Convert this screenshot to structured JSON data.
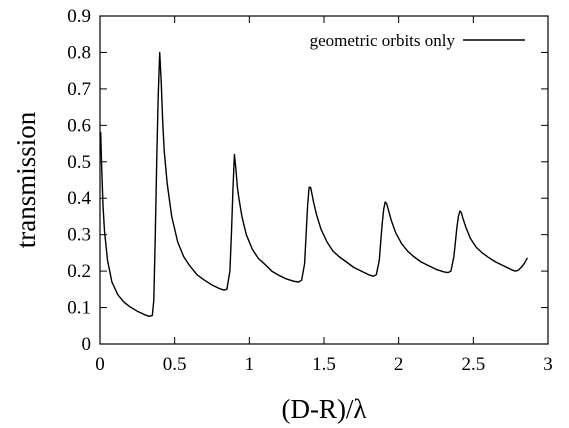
{
  "chart_data": {
    "type": "line",
    "title": "",
    "xlabel": "(D-R)/λ",
    "ylabel": "transmission",
    "xlim": [
      0,
      3
    ],
    "ylim": [
      0,
      0.9
    ],
    "x_ticks": [
      0,
      0.5,
      1,
      1.5,
      2,
      2.5,
      3
    ],
    "x_tick_labels": [
      "0",
      "0.5",
      "1",
      "1.5",
      "2",
      "2.5",
      "3"
    ],
    "y_ticks": [
      0,
      0.1,
      0.2,
      0.3,
      0.4,
      0.5,
      0.6,
      0.7,
      0.8,
      0.9
    ],
    "y_tick_labels": [
      "0",
      "0.1",
      "0.2",
      "0.3",
      "0.4",
      "0.5",
      "0.6",
      "0.7",
      "0.8",
      "0.9"
    ],
    "grid": false,
    "legend_position": "top-right",
    "series": [
      {
        "name": "geometric orbits only",
        "color": "#000000",
        "x": [
          0.005,
          0.01,
          0.02,
          0.03,
          0.05,
          0.08,
          0.12,
          0.16,
          0.2,
          0.25,
          0.3,
          0.33,
          0.35,
          0.36,
          0.37,
          0.38,
          0.39,
          0.4,
          0.41,
          0.42,
          0.43,
          0.45,
          0.48,
          0.52,
          0.56,
          0.6,
          0.65,
          0.7,
          0.75,
          0.8,
          0.83,
          0.85,
          0.87,
          0.88,
          0.89,
          0.9,
          0.91,
          0.92,
          0.93,
          0.95,
          0.98,
          1.02,
          1.06,
          1.1,
          1.15,
          1.2,
          1.25,
          1.3,
          1.33,
          1.35,
          1.37,
          1.38,
          1.39,
          1.4,
          1.41,
          1.42,
          1.43,
          1.45,
          1.48,
          1.52,
          1.56,
          1.6,
          1.65,
          1.7,
          1.75,
          1.8,
          1.83,
          1.85,
          1.87,
          1.88,
          1.89,
          1.9,
          1.91,
          1.92,
          1.93,
          1.95,
          1.98,
          2.02,
          2.06,
          2.1,
          2.15,
          2.2,
          2.25,
          2.3,
          2.33,
          2.35,
          2.37,
          2.38,
          2.39,
          2.4,
          2.41,
          2.42,
          2.43,
          2.45,
          2.48,
          2.52,
          2.56,
          2.6,
          2.65,
          2.7,
          2.75,
          2.78,
          2.8,
          2.82,
          2.84,
          2.86
        ],
        "y": [
          0.58,
          0.5,
          0.38,
          0.31,
          0.23,
          0.17,
          0.135,
          0.115,
          0.102,
          0.09,
          0.08,
          0.076,
          0.078,
          0.12,
          0.3,
          0.5,
          0.68,
          0.8,
          0.72,
          0.61,
          0.53,
          0.44,
          0.35,
          0.28,
          0.24,
          0.215,
          0.19,
          0.175,
          0.162,
          0.152,
          0.148,
          0.15,
          0.2,
          0.3,
          0.42,
          0.52,
          0.48,
          0.43,
          0.4,
          0.35,
          0.3,
          0.26,
          0.235,
          0.22,
          0.2,
          0.188,
          0.178,
          0.172,
          0.17,
          0.175,
          0.22,
          0.3,
          0.38,
          0.43,
          0.43,
          0.41,
          0.39,
          0.355,
          0.315,
          0.28,
          0.255,
          0.24,
          0.225,
          0.21,
          0.2,
          0.19,
          0.186,
          0.19,
          0.23,
          0.28,
          0.33,
          0.37,
          0.39,
          0.385,
          0.37,
          0.34,
          0.305,
          0.275,
          0.255,
          0.24,
          0.225,
          0.215,
          0.205,
          0.198,
          0.196,
          0.2,
          0.24,
          0.28,
          0.32,
          0.35,
          0.365,
          0.36,
          0.345,
          0.32,
          0.29,
          0.265,
          0.25,
          0.238,
          0.225,
          0.215,
          0.205,
          0.2,
          0.202,
          0.21,
          0.22,
          0.235
        ]
      }
    ]
  }
}
